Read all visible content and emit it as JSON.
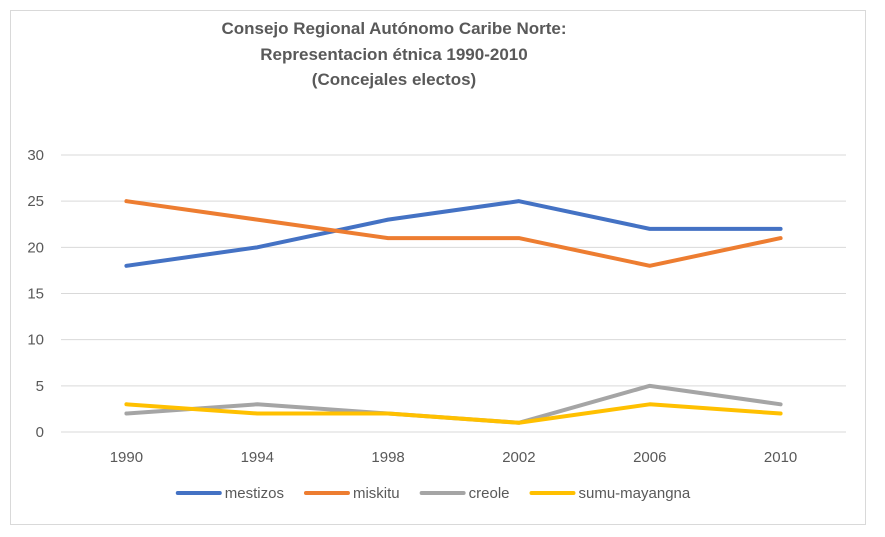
{
  "chart_data": {
    "type": "line",
    "title_lines": [
      "Consejo Regional Autónomo Caribe Norte:",
      "Representacion étnica 1990-2010",
      "(Concejales electos)"
    ],
    "xlabel": "",
    "ylabel": "",
    "categories": [
      "1990",
      "1994",
      "1998",
      "2002",
      "2006",
      "2010"
    ],
    "ylim": [
      0,
      30
    ],
    "yticks": [
      0,
      5,
      10,
      15,
      20,
      25,
      30
    ],
    "grid": true,
    "legend_position": "bottom",
    "series": [
      {
        "name": "mestizos",
        "color": "#4472c4",
        "values": [
          18,
          20,
          23,
          25,
          22,
          22
        ]
      },
      {
        "name": "miskitu",
        "color": "#ed7d31",
        "values": [
          25,
          23,
          21,
          21,
          18,
          21
        ]
      },
      {
        "name": "creole",
        "color": "#a5a5a5",
        "values": [
          2,
          3,
          2,
          1,
          5,
          3
        ]
      },
      {
        "name": "sumu-mayangna",
        "color": "#ffc000",
        "values": [
          3,
          2,
          2,
          1,
          3,
          2
        ]
      }
    ]
  }
}
